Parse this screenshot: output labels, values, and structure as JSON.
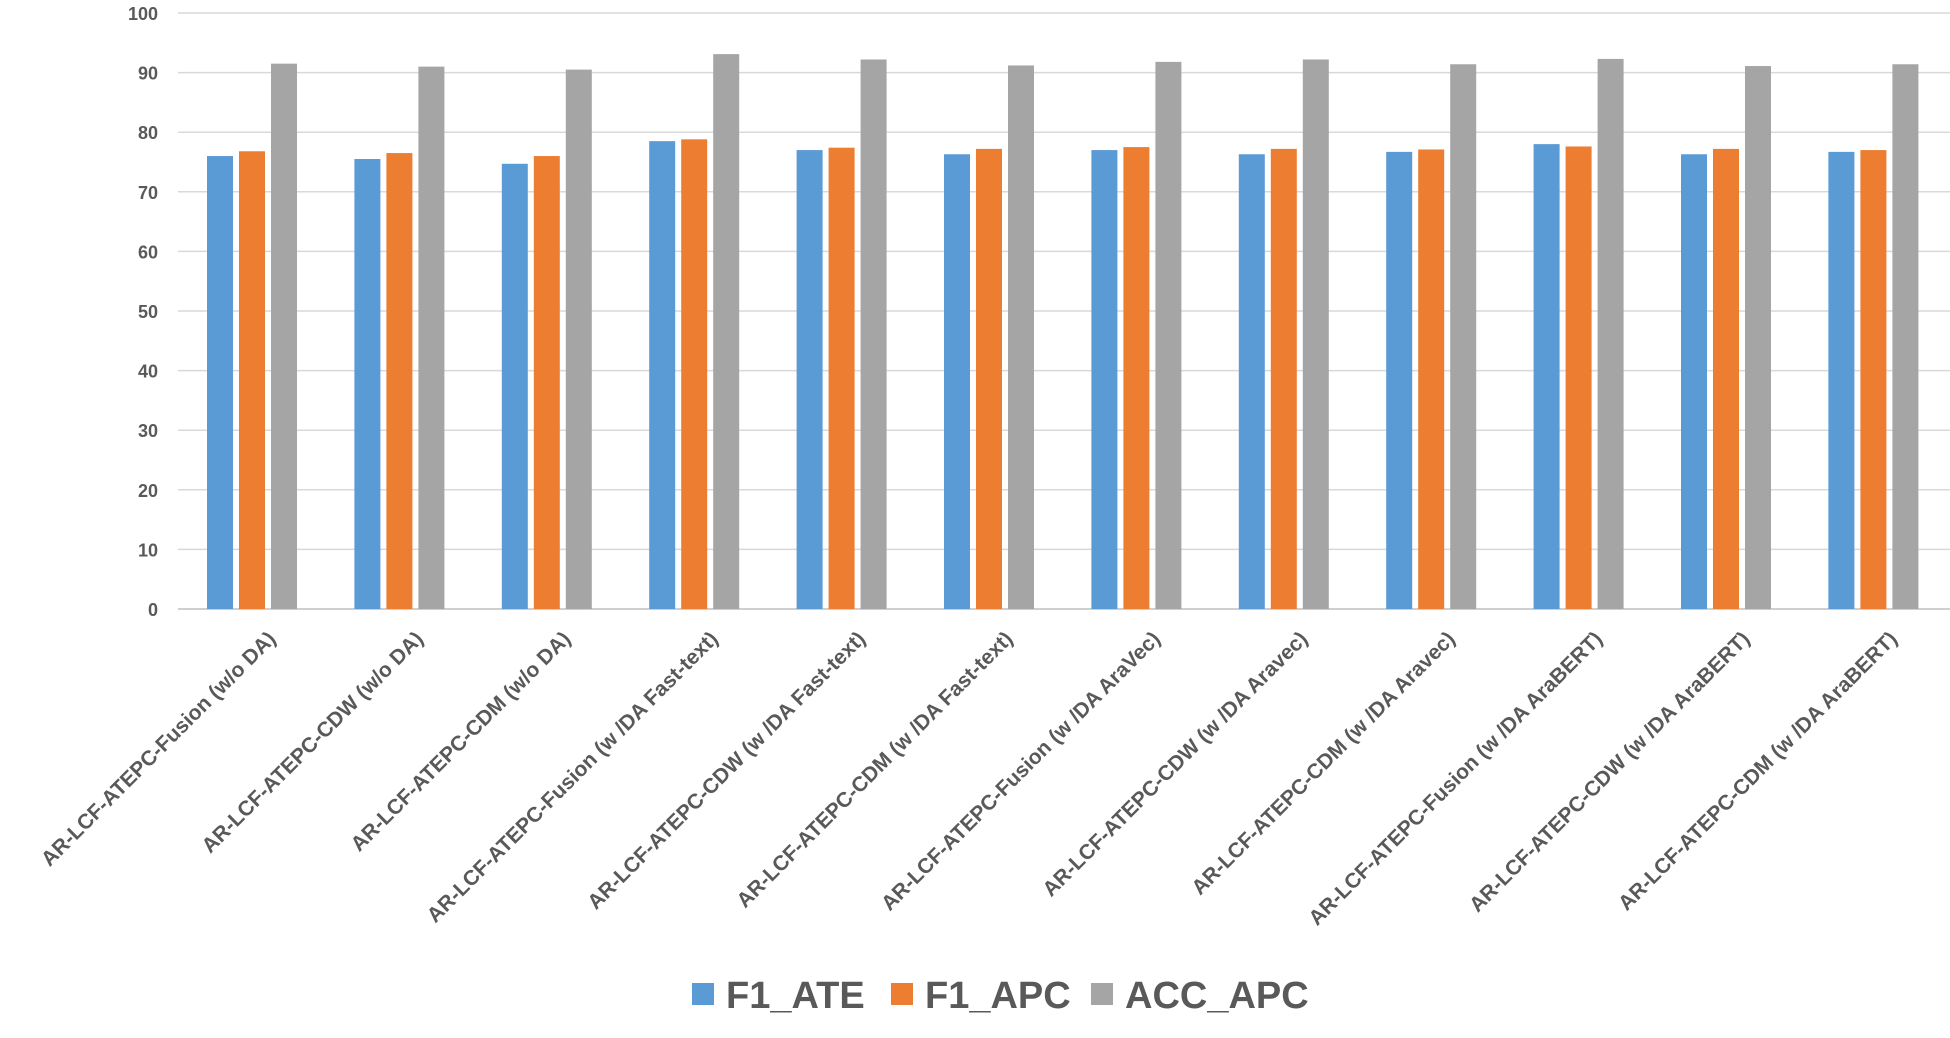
{
  "chart_data": {
    "type": "bar",
    "title": "",
    "xlabel": "",
    "ylabel": "",
    "ylim": [
      0,
      100
    ],
    "yticks": [
      0,
      10,
      20,
      30,
      40,
      50,
      60,
      70,
      80,
      90,
      100
    ],
    "grid": true,
    "legend_position": "bottom-center",
    "categories": [
      "AR-LCF-ATEPC-Fusion (w/o DA)",
      "AR-LCF-ATEPC-CDW (w/o DA)",
      "AR-LCF-ATEPC-CDM (w/o DA)",
      "AR-LCF-ATEPC-Fusion (w /DA Fast-text)",
      "AR-LCF-ATEPC-CDW (w /DA Fast-text)",
      "AR-LCF-ATEPC-CDM (w /DA  Fast-text)",
      "AR-LCF-ATEPC-Fusion (w /DA AraVec)",
      "AR-LCF-ATEPC-CDW (w /DA  Aravec)",
      "AR-LCF-ATEPC-CDM (w /DA Aravec)",
      "AR-LCF-ATEPC-Fusion (w /DA AraBERT)",
      "AR-LCF-ATEPC-CDW  (w /DA  AraBERT)",
      "AR-LCF-ATEPC-CDM (w /DA  AraBERT)"
    ],
    "series": [
      {
        "name": "F1_ATE",
        "color": "#5B9BD5",
        "values": [
          76.0,
          75.5,
          74.7,
          78.5,
          77.0,
          76.3,
          77.0,
          76.3,
          76.7,
          78.0,
          76.3,
          76.7
        ]
      },
      {
        "name": "F1_APC",
        "color": "#ED7D31",
        "values": [
          76.8,
          76.5,
          76.0,
          78.8,
          77.4,
          77.2,
          77.5,
          77.2,
          77.1,
          77.6,
          77.2,
          77.0
        ]
      },
      {
        "name": "ACC_APC",
        "color": "#A5A5A5",
        "values": [
          91.5,
          91.0,
          90.5,
          93.1,
          92.2,
          91.2,
          91.8,
          92.2,
          91.4,
          92.3,
          91.1,
          91.4
        ]
      }
    ]
  }
}
